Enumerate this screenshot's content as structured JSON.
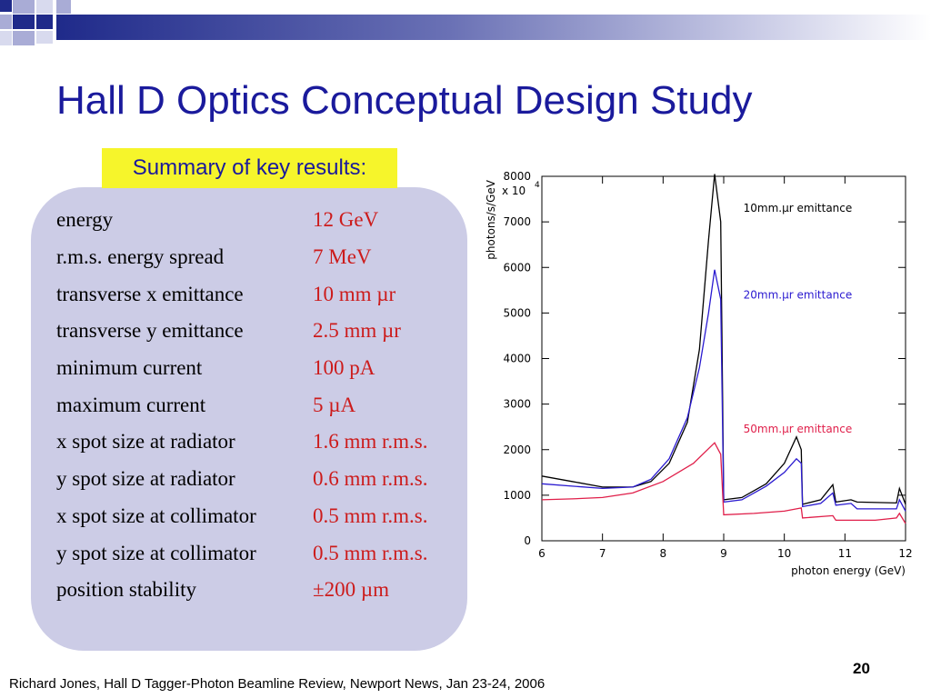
{
  "slide": {
    "title": "Hall D Optics Conceptual Design Study",
    "summary_label": "Summary of key results:",
    "footer": "Richard Jones, Hall D Tagger-Photon Beamline Review, Newport News, Jan 23-24, 2006",
    "page_number": "20"
  },
  "results": [
    {
      "label": "energy",
      "value": "12 GeV"
    },
    {
      "label": "r.m.s. energy spread",
      "value": "7 MeV"
    },
    {
      "label": "transverse x emittance",
      "value": "10 mm µr"
    },
    {
      "label": "transverse y emittance",
      "value": "2.5 mm µr"
    },
    {
      "label": "minimum current",
      "value": "100 pA"
    },
    {
      "label": "maximum current",
      "value": "5 µA"
    },
    {
      "label": "x spot size at radiator",
      "value": "1.6 mm r.m.s."
    },
    {
      "label": "y spot size at radiator",
      "value": "0.6 mm r.m.s."
    },
    {
      "label": "x spot size at collimator",
      "value": "0.5 mm r.m.s."
    },
    {
      "label": "y spot size at collimator",
      "value": "0.5 mm r.m.s."
    },
    {
      "label": "position stability",
      "value": "±200 µm"
    }
  ],
  "chart_data": {
    "type": "line",
    "xlabel": "photon energy (GeV)",
    "ylabel": "photons/s/GeV",
    "y_multiplier_label": "x 10",
    "y_multiplier_exp": "4",
    "xlim": [
      6,
      12
    ],
    "ylim": [
      0,
      8000
    ],
    "x_ticks": [
      6,
      7,
      8,
      9,
      10,
      11,
      12
    ],
    "y_ticks": [
      0,
      1000,
      2000,
      3000,
      4000,
      5000,
      6000,
      7000,
      8000
    ],
    "grid": false,
    "series": [
      {
        "name": "10mm.μr emittance",
        "color": "#000000",
        "label_x": 8.2,
        "label_y": 7300,
        "points": [
          [
            6,
            1420
          ],
          [
            6.5,
            1300
          ],
          [
            7,
            1180
          ],
          [
            7.5,
            1180
          ],
          [
            7.8,
            1300
          ],
          [
            8.1,
            1700
          ],
          [
            8.4,
            2600
          ],
          [
            8.6,
            4200
          ],
          [
            8.75,
            6600
          ],
          [
            8.85,
            8050
          ],
          [
            8.95,
            7000
          ],
          [
            9.0,
            900
          ],
          [
            9.3,
            950
          ],
          [
            9.7,
            1250
          ],
          [
            10.0,
            1700
          ],
          [
            10.2,
            2280
          ],
          [
            10.28,
            2000
          ],
          [
            10.3,
            800
          ],
          [
            10.6,
            900
          ],
          [
            10.8,
            1230
          ],
          [
            10.85,
            850
          ],
          [
            11.1,
            900
          ],
          [
            11.2,
            850
          ],
          [
            11.85,
            830
          ],
          [
            11.9,
            1150
          ],
          [
            12,
            800
          ]
        ]
      },
      {
        "name": "20mm.μr emittance",
        "color": "#2a1ad0",
        "label_x": 8.2,
        "label_y": 5400,
        "points": [
          [
            6,
            1250
          ],
          [
            6.5,
            1200
          ],
          [
            7,
            1150
          ],
          [
            7.5,
            1180
          ],
          [
            7.8,
            1350
          ],
          [
            8.1,
            1800
          ],
          [
            8.4,
            2700
          ],
          [
            8.6,
            3800
          ],
          [
            8.75,
            5000
          ],
          [
            8.85,
            5950
          ],
          [
            8.95,
            5300
          ],
          [
            9.0,
            850
          ],
          [
            9.3,
            900
          ],
          [
            9.7,
            1200
          ],
          [
            10.0,
            1500
          ],
          [
            10.2,
            1800
          ],
          [
            10.28,
            1700
          ],
          [
            10.3,
            750
          ],
          [
            10.6,
            820
          ],
          [
            10.8,
            1050
          ],
          [
            10.85,
            780
          ],
          [
            11.1,
            820
          ],
          [
            11.2,
            700
          ],
          [
            11.85,
            700
          ],
          [
            11.9,
            900
          ],
          [
            12,
            650
          ]
        ]
      },
      {
        "name": "50mm.μr emittance",
        "color": "#e01f4a",
        "label_x": 8.2,
        "label_y": 2450,
        "points": [
          [
            6,
            900
          ],
          [
            6.5,
            920
          ],
          [
            7,
            950
          ],
          [
            7.5,
            1050
          ],
          [
            8,
            1300
          ],
          [
            8.5,
            1700
          ],
          [
            8.85,
            2150
          ],
          [
            8.95,
            1900
          ],
          [
            9.0,
            570
          ],
          [
            9.5,
            600
          ],
          [
            10,
            650
          ],
          [
            10.2,
            700
          ],
          [
            10.28,
            720
          ],
          [
            10.3,
            500
          ],
          [
            10.8,
            550
          ],
          [
            10.85,
            450
          ],
          [
            11.5,
            450
          ],
          [
            11.85,
            500
          ],
          [
            11.9,
            600
          ],
          [
            12,
            380
          ]
        ]
      }
    ]
  }
}
